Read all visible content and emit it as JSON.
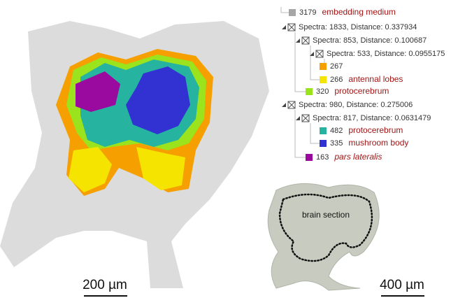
{
  "tree": {
    "rows": [
      {
        "count": 3179,
        "label": "embedding medium",
        "color": "#a6a6a6"
      },
      {
        "text": "Spectra: 1833, Distance: 0.337934"
      },
      {
        "text": "Spectra: 853, Distance: 0.100687"
      },
      {
        "text": "Spectra: 533, Distance: 0.0955175"
      },
      {
        "count": 267,
        "color": "#f5a000"
      },
      {
        "count": 266,
        "label": "antennal lobes",
        "color": "#f5e400"
      },
      {
        "count": 320,
        "label": "protocerebrum",
        "color": "#9be31c"
      },
      {
        "text": "Spectra: 980, Distance: 0.275006"
      },
      {
        "text": "Spectra: 817, Distance: 0.0631479"
      },
      {
        "count": 482,
        "label": "protocerebrum",
        "color": "#26b3a0"
      },
      {
        "count": 335,
        "label": "mushroom body",
        "color": "#3232d2"
      },
      {
        "count": 163,
        "label": "pars lateralis",
        "color": "#9a0a9e"
      }
    ]
  },
  "micrograph": {
    "label": "brain section"
  },
  "scale_bars": {
    "left": "200 µm",
    "right": "400 µm"
  }
}
